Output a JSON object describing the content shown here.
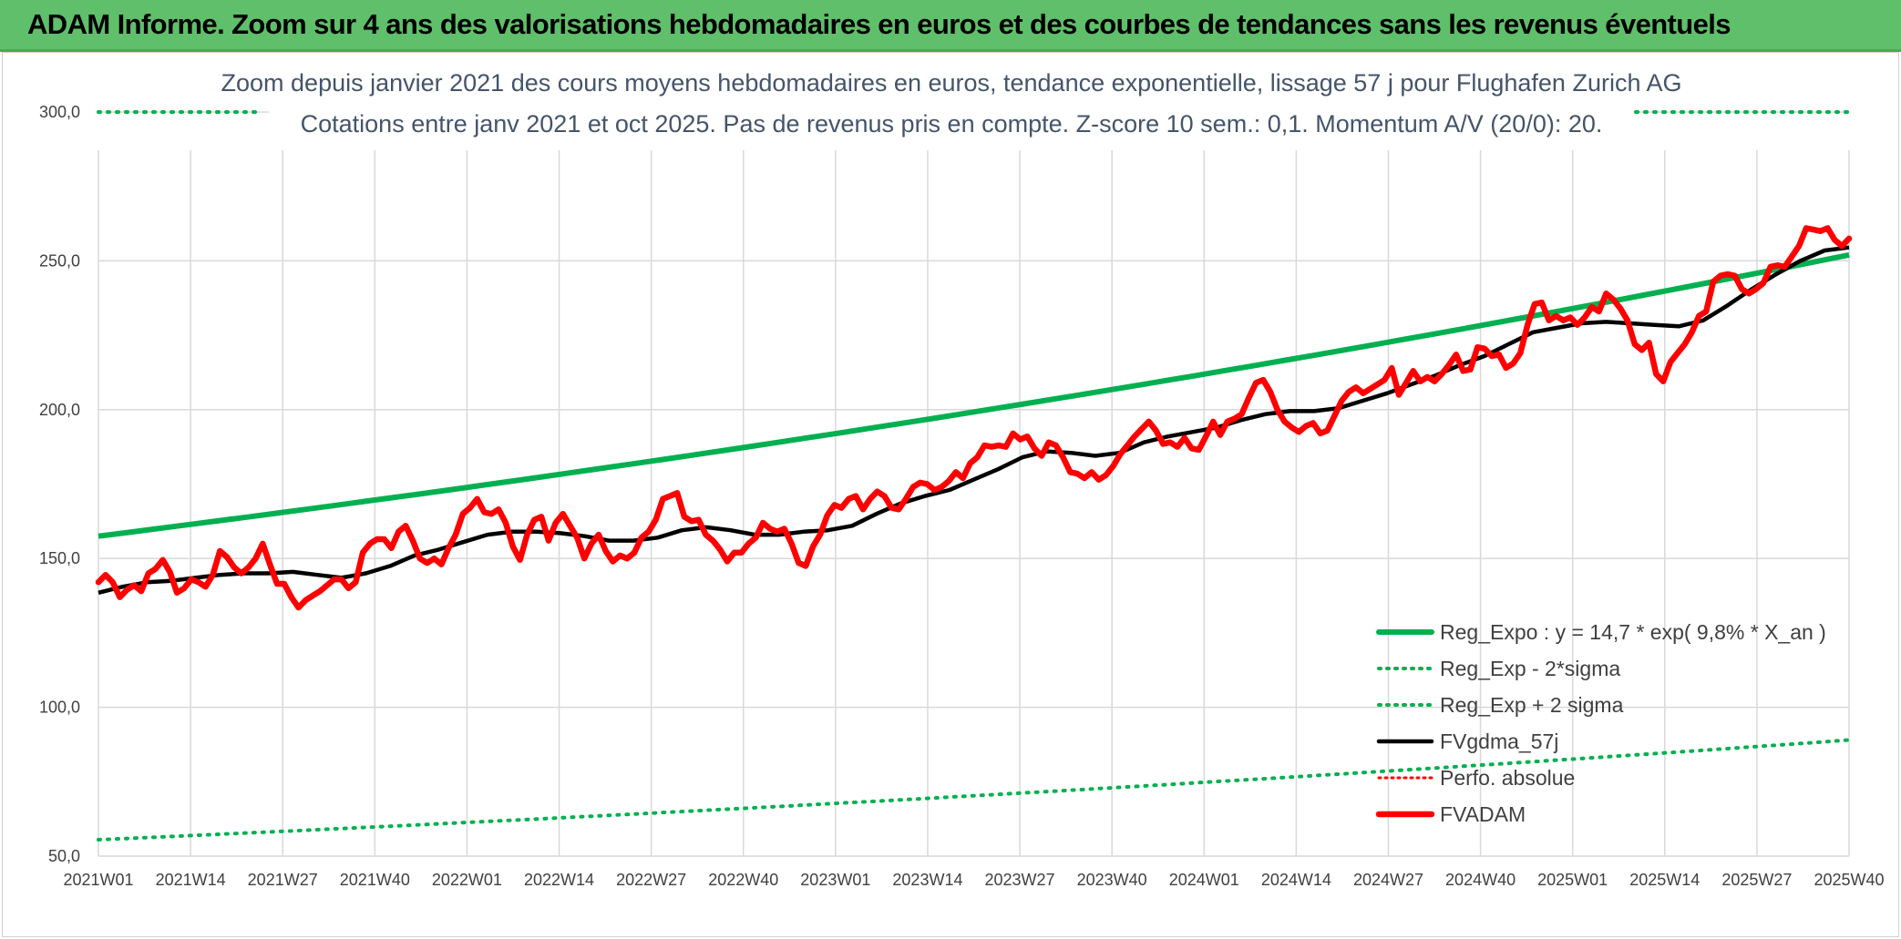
{
  "header": {
    "title": "ADAM Informe. Zoom sur 4 ans des valorisations hebdomadaires en euros et des courbes de tendances sans les revenus éventuels"
  },
  "chart_data": {
    "type": "line",
    "subtitle_line1": "Zoom depuis janvier 2021 des cours moyens hebdomadaires en euros, tendance exponentielle, lissage 57 j pour Flughafen Zurich AG",
    "subtitle_line2": "Cotations entre janv 2021 et oct 2025. Pas de revenus pris en compte. Z-score 10 sem.: 0,1. Momentum A/V (20/0): 20.",
    "ylim": [
      50,
      300
    ],
    "yticks": [
      "50,0",
      "100,0",
      "150,0",
      "200,0",
      "250,0",
      "300,0"
    ],
    "ytick_values": [
      50,
      100,
      150,
      200,
      250,
      300
    ],
    "xticks": [
      "2021W01",
      "2021W14",
      "2021W27",
      "2021W40",
      "2022W01",
      "2022W14",
      "2022W27",
      "2022W40",
      "2023W01",
      "2023W14",
      "2023W27",
      "2023W40",
      "2024W01",
      "2024W14",
      "2024W27",
      "2024W40",
      "2025W01",
      "2025W14",
      "2025W27",
      "2025W40"
    ],
    "grid": true,
    "legend_position": "bottom-right",
    "colors": {
      "reg_expo": "#00b050",
      "reg_bands": "#00b050",
      "fvgdma": "#000000",
      "perfo": "#ff0000",
      "fvadam": "#ff0000",
      "grid": "#d9d9d9"
    },
    "series": [
      {
        "name": "Reg_Expo : y = 14,7 * exp( 9,8% *  X_an )",
        "style": "solid-thick",
        "start": 157.5,
        "end": 252
      },
      {
        "name": "Reg_Exp - 2*sigma",
        "style": "dotted",
        "start": 55.5,
        "end": 89
      },
      {
        "name": "Reg_Exp + 2 sigma",
        "style": "dotted",
        "note_values_visible_until_clipped": [
          300,
          300
        ]
      },
      {
        "name": "FVgdma_57j",
        "style": "solid",
        "values": [
          138.5,
          140.5,
          142,
          142.5,
          143.5,
          144.5,
          145,
          145,
          145.5,
          144.5,
          143.5,
          145,
          147.5,
          151,
          153,
          155.5,
          158,
          159,
          159,
          158.5,
          157.5,
          156,
          156,
          157,
          159.5,
          160.5,
          159.5,
          158,
          158,
          159,
          159.5,
          161,
          165,
          168.5,
          171,
          173,
          176.5,
          180,
          184,
          186,
          185.5,
          184.5,
          185.5,
          189,
          191,
          192.5,
          194,
          196.5,
          198.5,
          199.5,
          199.5,
          200.5,
          203,
          205.5,
          208.5,
          211.5,
          215,
          218,
          222,
          226,
          227.5,
          229,
          229.5,
          229,
          228.5,
          228,
          230,
          235,
          240.5,
          245.5,
          250,
          253.5,
          254.5
        ]
      },
      {
        "name": "Perfo. absolue",
        "style": "dotted-red"
      },
      {
        "name": "FVADAM",
        "style": "solid-thick",
        "values": [
          142,
          144.5,
          142,
          137,
          139.5,
          141,
          139,
          145,
          146.5,
          149.5,
          145.5,
          138.5,
          140,
          143,
          142,
          140.5,
          144.5,
          152.5,
          150.5,
          147,
          145,
          147,
          150,
          155,
          148,
          141.5,
          141.5,
          137,
          133.5,
          136,
          137.5,
          139,
          141,
          143,
          143,
          140,
          142,
          152,
          155,
          156.5,
          156.5,
          153.5,
          159,
          161,
          156,
          150,
          148.5,
          150,
          148,
          153.5,
          158,
          165,
          167,
          170,
          165.5,
          165,
          166.5,
          162,
          154,
          149.5,
          158,
          163,
          164,
          156,
          162,
          165,
          161,
          157,
          150,
          155,
          158,
          152.5,
          149,
          151,
          150,
          152,
          157,
          159,
          163,
          170,
          171,
          172,
          164,
          162.5,
          163,
          158,
          156,
          153,
          149,
          152,
          152,
          155,
          157,
          162,
          160,
          159,
          160,
          155,
          148.5,
          147.5,
          154,
          158,
          164.5,
          168,
          167,
          170,
          171,
          166.5,
          170,
          172.5,
          171,
          167,
          166.5,
          170,
          174,
          175.5,
          175,
          173,
          174,
          176,
          179,
          177,
          182,
          184,
          188,
          187.5,
          188,
          187.5,
          192,
          190,
          191,
          187,
          184.5,
          189,
          188,
          184,
          179,
          178.5,
          177,
          179,
          176.5,
          178,
          181,
          185,
          188,
          191,
          193.5,
          196,
          193,
          188.5,
          189,
          187.5,
          190.5,
          187,
          186.5,
          191,
          196,
          191.5,
          196,
          197,
          198.5,
          204,
          209,
          210,
          206,
          200,
          196,
          194,
          192.5,
          194.5,
          195.5,
          192,
          193,
          198,
          203,
          206,
          207.5,
          205.5,
          207,
          208.5,
          210,
          214,
          205,
          209,
          213,
          209.5,
          211,
          209.5,
          212,
          215,
          218.5,
          213,
          213.5,
          221,
          220.5,
          218,
          218.5,
          214,
          215.5,
          219,
          228.5,
          235.5,
          236,
          230,
          231.5,
          230,
          231,
          228.5,
          231,
          234.5,
          233,
          239,
          237,
          234,
          230,
          222,
          220,
          222.5,
          212,
          209.5,
          216,
          219,
          222,
          226,
          231.5,
          233,
          243,
          245,
          245.5,
          245,
          240.5,
          239,
          240.5,
          242.5,
          248,
          248.5,
          248,
          251.5,
          255,
          261,
          260.5,
          260,
          261,
          257,
          255,
          257.5
        ]
      }
    ]
  }
}
